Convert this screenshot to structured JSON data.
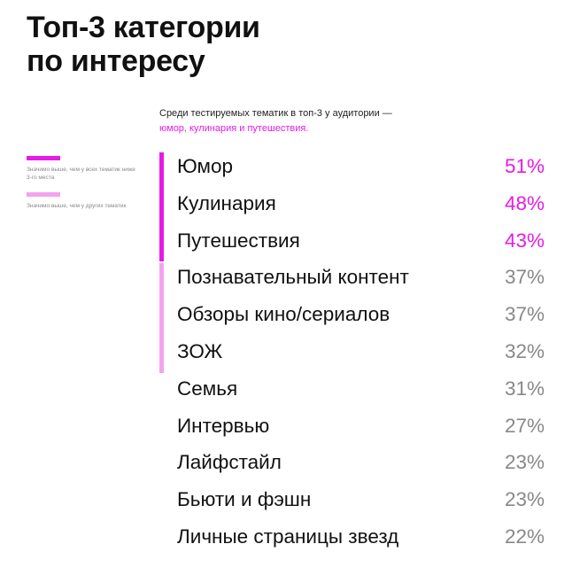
{
  "title": {
    "line1": "Топ-3 категории",
    "line2": "по интересу"
  },
  "subtitle": {
    "plain": "Среди тестируемых тематик в топ-3 у аудитории —",
    "highlight": "юмор, кулинария и путешествия."
  },
  "legend": [
    {
      "color": "#e61be6",
      "text": "Значимо выше, чем у всех тематик ниже 3-го места"
    },
    {
      "color": "#f2a3f0",
      "text": "Значимо выше, чем у других тематик"
    }
  ],
  "colors": {
    "accent": "#e61be6",
    "accent_light": "#f2a3f0",
    "muted": "#888888"
  },
  "chart_data": {
    "type": "table",
    "title": "Топ-3 категории по интересу",
    "unit": "%",
    "categories": [
      "Юмор",
      "Кулинария",
      "Путешествия",
      "Познавательный контент",
      "Обзоры кино/сериалов",
      "ЗОЖ",
      "Семья",
      "Интервью",
      "Лайфстайл",
      "Бьюти и фэшн",
      "Личные страницы звезд"
    ],
    "values": [
      51,
      48,
      43,
      37,
      37,
      32,
      31,
      27,
      23,
      23,
      22
    ],
    "labels": [
      "51%",
      "48%",
      "43%",
      "37%",
      "37%",
      "32%",
      "31%",
      "27%",
      "23%",
      "23%",
      "22%"
    ],
    "groups": [
      {
        "legend_index": 0,
        "rows": [
          0,
          2
        ]
      },
      {
        "legend_index": 1,
        "rows": [
          3,
          5
        ]
      }
    ]
  }
}
